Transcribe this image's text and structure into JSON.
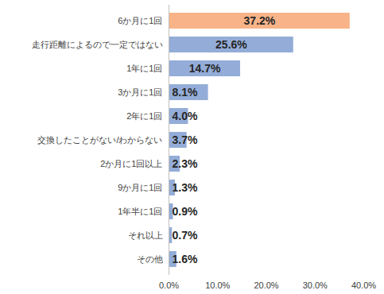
{
  "chart_data": {
    "type": "bar",
    "orientation": "horizontal",
    "categories": [
      "6か月に1回",
      "走行距離によるので一定ではない",
      "1年に1回",
      "3か月に1回",
      "2年に1回",
      "交換したことがない/わからない",
      "2か月に1回以上",
      "9か月に1回",
      "1年半に1回",
      "それ以上",
      "その他"
    ],
    "values": [
      37.2,
      25.6,
      14.7,
      8.1,
      4.0,
      3.7,
      2.3,
      1.3,
      0.9,
      0.7,
      1.6
    ],
    "value_labels": [
      "37.2%",
      "25.6%",
      "14.7%",
      "8.1%",
      "4.0%",
      "3.7%",
      "2.3%",
      "1.3%",
      "0.9%",
      "0.7%",
      "1.6%"
    ],
    "colors": [
      "#f8b488",
      "#94add8",
      "#94add8",
      "#94add8",
      "#94add8",
      "#94add8",
      "#94add8",
      "#94add8",
      "#94add8",
      "#94add8",
      "#94add8"
    ],
    "xlim": [
      0,
      40
    ],
    "xticks": [
      {
        "value": 0,
        "label": "0.0%"
      },
      {
        "value": 10,
        "label": "10.0%"
      },
      {
        "value": 20,
        "label": "20.0%"
      },
      {
        "value": 30,
        "label": "30.0%"
      },
      {
        "value": 40,
        "label": "40.0%"
      }
    ],
    "grid": false,
    "data_labels": true
  }
}
